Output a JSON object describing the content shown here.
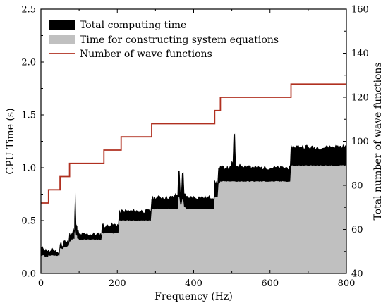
{
  "chart_data": {
    "type": "area",
    "xlabel": "Frequency (Hz)",
    "ylabel_left": "CPU Time (s)",
    "ylabel_right": "Total number of wave functions",
    "xlim": [
      0,
      800
    ],
    "ylim_left": [
      0,
      2.5
    ],
    "ylim_right": [
      40,
      160
    ],
    "xticks": [
      "0",
      "200",
      "400",
      "600",
      "800"
    ],
    "yticks_left": [
      "0.0",
      "0.5",
      "1.0",
      "1.5",
      "2.0",
      "2.5"
    ],
    "yticks_right": [
      "40",
      "60",
      "80",
      "100",
      "120",
      "140",
      "160"
    ],
    "grid": false,
    "legend_position": "top-left",
    "legend": [
      {
        "label": "Total computing time",
        "color": "#000000",
        "kind": "fill"
      },
      {
        "label": "Time for constructing system equations",
        "color": "#c0c0c0",
        "kind": "fill"
      },
      {
        "label": "Number of wave functions",
        "color": "#b03020",
        "kind": "line"
      }
    ],
    "series": [
      {
        "name": "Total computing time",
        "color": "#000000",
        "x": [
          1,
          10,
          20,
          30,
          40,
          50,
          55,
          60,
          65,
          70,
          75,
          80,
          85,
          88,
          90,
          92,
          95,
          100,
          110,
          130,
          150,
          160,
          165,
          180,
          200,
          205,
          210,
          250,
          285,
          290,
          300,
          320,
          350,
          360,
          365,
          370,
          375,
          380,
          400,
          430,
          450,
          455,
          460,
          465,
          470,
          480,
          490,
          500,
          505,
          510,
          550,
          600,
          650,
          655,
          700,
          750,
          800
        ],
        "y": [
          0.24,
          0.22,
          0.21,
          0.22,
          0.2,
          0.29,
          0.27,
          0.31,
          0.29,
          0.3,
          0.37,
          0.39,
          0.41,
          0.5,
          0.76,
          0.45,
          0.4,
          0.37,
          0.37,
          0.37,
          0.37,
          0.46,
          0.45,
          0.46,
          0.46,
          0.58,
          0.59,
          0.59,
          0.59,
          0.71,
          0.72,
          0.72,
          0.74,
          0.98,
          0.76,
          0.96,
          0.74,
          0.72,
          0.72,
          0.72,
          0.72,
          0.86,
          0.86,
          0.99,
          1.0,
          1.0,
          1.0,
          1.05,
          1.3,
          1.02,
          1.0,
          1.0,
          1.0,
          1.2,
          1.19,
          1.2,
          1.2
        ]
      },
      {
        "name": "Time for constructing system equations",
        "color": "#c0c0c0",
        "x": [
          1,
          10,
          20,
          30,
          40,
          50,
          55,
          60,
          65,
          70,
          75,
          80,
          85,
          88,
          90,
          92,
          95,
          100,
          110,
          130,
          150,
          160,
          165,
          180,
          200,
          205,
          210,
          250,
          285,
          290,
          300,
          320,
          350,
          360,
          365,
          370,
          375,
          380,
          400,
          430,
          450,
          455,
          460,
          465,
          470,
          480,
          490,
          500,
          505,
          510,
          550,
          600,
          650,
          655,
          700,
          750,
          800
        ],
        "y": [
          0.17,
          0.16,
          0.17,
          0.17,
          0.17,
          0.24,
          0.23,
          0.25,
          0.25,
          0.26,
          0.3,
          0.32,
          0.33,
          0.38,
          0.43,
          0.36,
          0.33,
          0.32,
          0.32,
          0.32,
          0.32,
          0.38,
          0.38,
          0.38,
          0.38,
          0.5,
          0.5,
          0.5,
          0.5,
          0.61,
          0.61,
          0.61,
          0.61,
          0.72,
          0.65,
          0.7,
          0.63,
          0.61,
          0.61,
          0.61,
          0.61,
          0.72,
          0.72,
          0.85,
          0.87,
          0.87,
          0.87,
          0.87,
          0.87,
          0.87,
          0.87,
          0.87,
          0.87,
          1.02,
          1.02,
          1.02,
          1.02
        ]
      },
      {
        "name": "Number of wave functions",
        "color": "#b03020",
        "axis": "right",
        "type": "step",
        "x": [
          1,
          20,
          50,
          75,
          165,
          210,
          290,
          455,
          470,
          655,
          800
        ],
        "y": [
          72,
          78,
          84,
          90,
          96,
          102,
          108,
          114,
          120,
          126,
          126
        ]
      }
    ]
  }
}
